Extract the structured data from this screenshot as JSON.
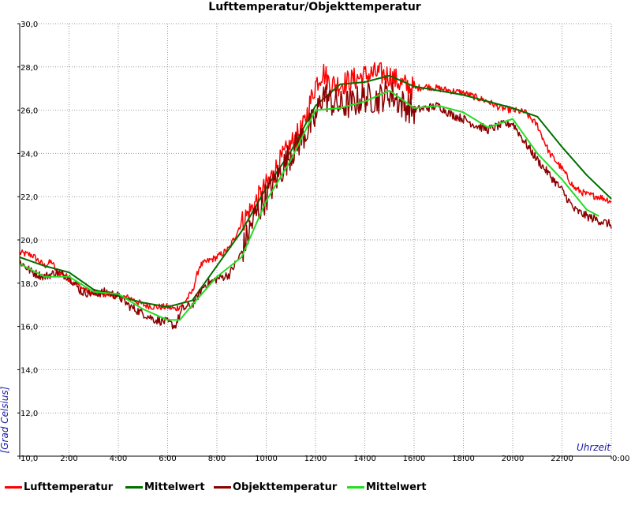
{
  "chart_data": {
    "type": "line",
    "title": "Lufttemperatur/Objekttemperatur",
    "ylabel": "[Grad Celsius]",
    "xlabel": "Uhrzeit",
    "x_ticks": [
      "0:00",
      "2:00",
      "4:00",
      "6:00",
      "8:00",
      "10:00",
      "12:00",
      "14:00",
      "16:00",
      "18:00",
      "20:00",
      "22:00",
      "0:00"
    ],
    "x_tick_hours": [
      0,
      2,
      4,
      6,
      8,
      10,
      12,
      14,
      16,
      18,
      20,
      22,
      24
    ],
    "y_ticks": [
      "10,0",
      "12,0",
      "14,0",
      "16,0",
      "18,0",
      "20,0",
      "22,0",
      "24,0",
      "26,0",
      "28,0",
      "30,0"
    ],
    "y_tick_values": [
      10,
      12,
      14,
      16,
      18,
      20,
      22,
      24,
      26,
      28,
      30
    ],
    "xlim_hours": [
      0,
      24
    ],
    "ylim": [
      10,
      30
    ],
    "grid": true,
    "legend_position": "bottom",
    "series": [
      {
        "name": "Lufttemperatur",
        "color": "#ff0000",
        "noise": 0.35,
        "x": [
          0,
          0.5,
          1,
          1.3,
          1.5,
          1.8,
          2,
          2.5,
          3,
          3.5,
          4,
          4.5,
          5,
          5.5,
          6,
          6.3,
          6.6,
          7,
          7.3,
          7.6,
          8,
          8.5,
          9,
          9.5,
          10,
          10.5,
          11,
          11.5,
          12,
          12.3,
          12.6,
          13,
          13.5,
          14,
          14.5,
          15,
          15.5,
          16,
          16.5,
          17,
          17.5,
          18,
          18.5,
          19,
          19.5,
          20,
          20.5,
          21,
          21.5,
          22,
          22.5,
          23,
          23.5,
          24
        ],
        "y": [
          19.4,
          19.3,
          18.8,
          19.0,
          18.5,
          18.4,
          18.2,
          17.8,
          17.5,
          17.5,
          17.4,
          17.3,
          17.0,
          16.9,
          16.9,
          16.8,
          17.0,
          17.6,
          18.8,
          19.0,
          19.2,
          19.6,
          20.8,
          21.6,
          22.5,
          23.5,
          24.4,
          25.2,
          27.2,
          27.8,
          27.2,
          27.2,
          27.4,
          27.6,
          27.7,
          27.6,
          27.2,
          27.0,
          27.1,
          27.0,
          26.9,
          26.8,
          26.6,
          26.4,
          26.1,
          26.0,
          25.9,
          25.3,
          24.0,
          23.3,
          22.4,
          22.1,
          22.0,
          21.8
        ]
      },
      {
        "name": "Mittelwert",
        "color": "#007000",
        "noise": 0,
        "x": [
          0,
          1,
          2,
          3,
          4,
          5,
          6,
          7,
          8,
          9,
          10,
          11,
          12,
          13,
          14,
          15,
          16,
          17,
          18,
          19,
          20,
          21,
          22,
          23,
          24
        ],
        "y": [
          19.2,
          18.8,
          18.5,
          17.7,
          17.4,
          17.1,
          16.9,
          17.2,
          18.8,
          20.4,
          22.4,
          24.1,
          26.2,
          27.2,
          27.3,
          27.6,
          27.1,
          26.9,
          26.7,
          26.4,
          26.1,
          25.7,
          24.3,
          23.0,
          21.9
        ]
      },
      {
        "name": "Objekttemperatur",
        "color": "#8b0000",
        "noise": 0.45,
        "x": [
          0,
          0.5,
          1,
          1.5,
          2,
          2.5,
          3,
          3.5,
          4,
          4.5,
          5,
          5.5,
          6,
          6.3,
          6.6,
          7,
          7.5,
          8,
          8.5,
          9,
          9.5,
          10,
          10.5,
          11,
          11.5,
          12,
          12.3,
          12.6,
          13,
          13.5,
          14,
          14.5,
          15,
          15.5,
          16,
          16.5,
          17,
          17.5,
          18,
          18.5,
          19,
          19.5,
          20,
          20.5,
          21,
          21.5,
          22,
          22.5,
          23,
          23.5,
          24
        ],
        "y": [
          19.0,
          18.5,
          18.3,
          18.5,
          18.3,
          17.6,
          17.5,
          17.6,
          17.4,
          16.9,
          16.6,
          16.3,
          16.2,
          16.0,
          16.8,
          17.0,
          17.9,
          18.2,
          18.4,
          19.4,
          21.0,
          22.0,
          23.0,
          24.0,
          24.8,
          25.6,
          26.8,
          26.4,
          26.2,
          26.3,
          26.6,
          26.5,
          26.8,
          26.3,
          26.0,
          26.1,
          26.2,
          25.8,
          25.6,
          25.3,
          25.1,
          25.3,
          25.4,
          24.5,
          23.7,
          23.0,
          22.3,
          21.4,
          21.1,
          20.9,
          20.7
        ]
      },
      {
        "name": "Mittelwert",
        "color": "#22dd22",
        "noise": 0,
        "x": [
          0,
          1,
          2,
          3,
          4,
          5,
          6,
          6.5,
          7,
          8,
          9,
          10,
          11,
          12,
          13,
          14,
          15,
          16,
          17,
          18,
          19,
          20,
          21,
          22,
          23,
          23.5
        ],
        "y": [
          18.9,
          18.3,
          18.3,
          17.6,
          17.5,
          16.8,
          16.3,
          16.3,
          17.0,
          18.3,
          19.2,
          21.8,
          23.7,
          26.0,
          26.1,
          26.4,
          26.9,
          26.1,
          26.2,
          25.9,
          25.2,
          25.6,
          24.0,
          22.8,
          21.4,
          21.1
        ]
      }
    ]
  }
}
